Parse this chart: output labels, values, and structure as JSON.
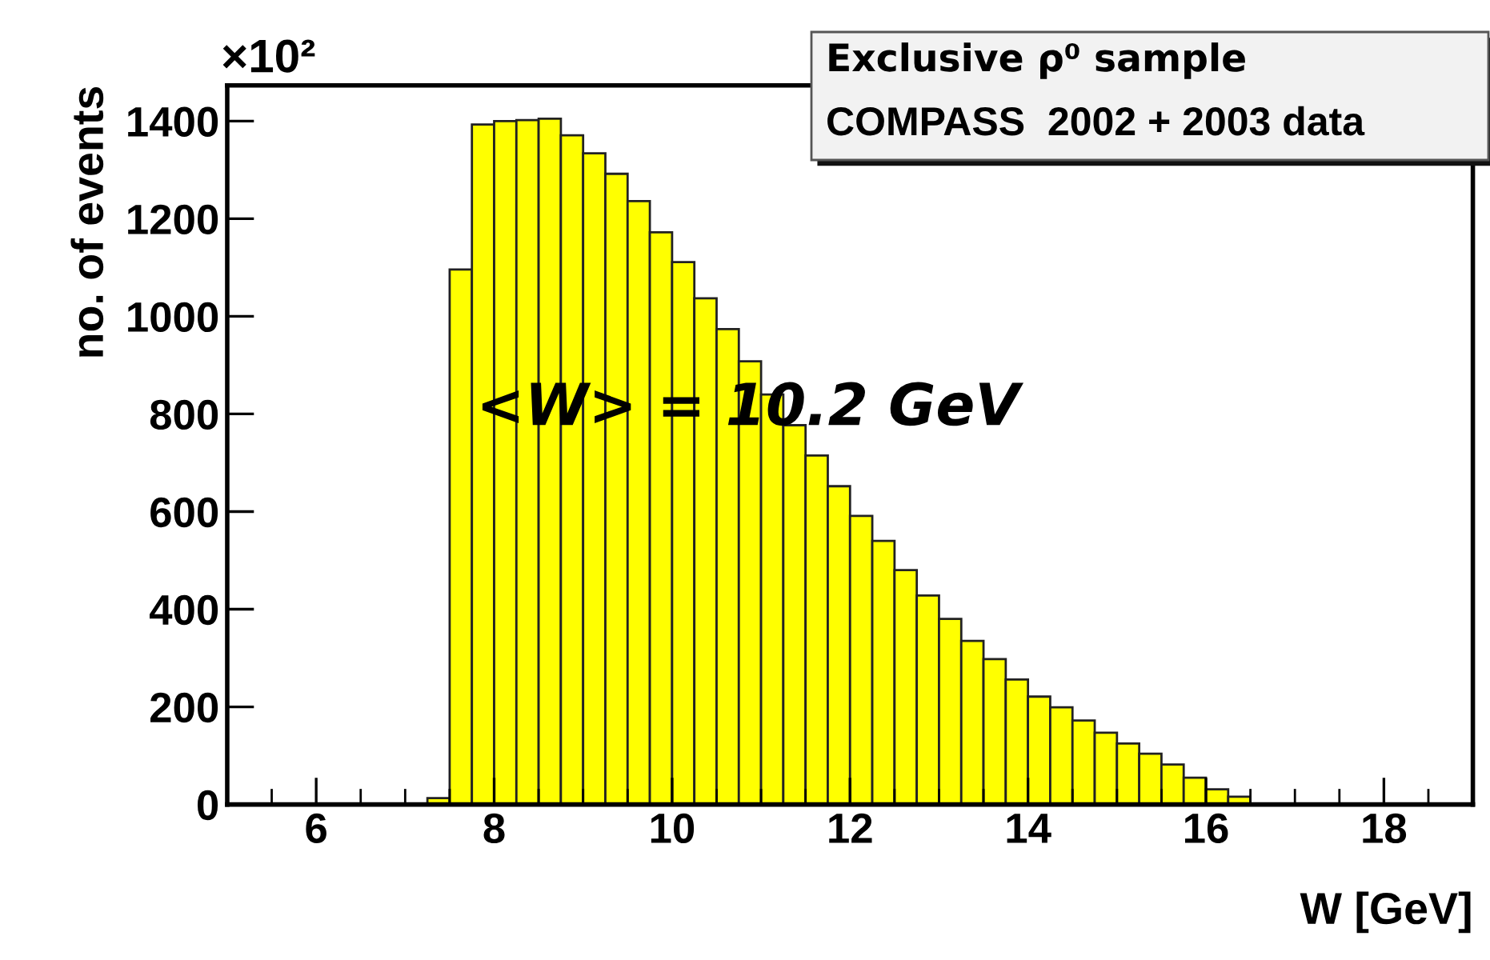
{
  "chart_data": {
    "type": "histogram",
    "title": "Exclusive ρ⁰ sample",
    "subtitle": "COMPASS  2002 + 2003 data",
    "xlabel": "W [GeV]",
    "ylabel": "no. of events",
    "annotations": [
      "×10²",
      "<W> = 10.2 GeV"
    ],
    "color": "#ffff00",
    "bins": [
      7.25,
      7.5,
      7.75,
      8.0,
      8.25,
      8.5,
      8.75,
      9.0,
      9.25,
      9.5,
      9.75,
      10.0,
      10.25,
      10.5,
      10.75,
      11.0,
      11.25,
      11.5,
      11.75,
      12.0,
      12.25,
      12.5,
      12.75,
      13.0,
      13.25,
      13.5,
      13.75,
      14.0,
      14.25,
      14.5,
      14.75,
      15.0,
      15.25,
      15.5,
      15.75,
      16.0,
      16.25,
      16.5
    ],
    "values": [
      13,
      1096,
      1393,
      1400,
      1402,
      1405,
      1371,
      1334,
      1292,
      1236,
      1172,
      1111,
      1037,
      974,
      908,
      840,
      777,
      715,
      652,
      591,
      540,
      480,
      428,
      380,
      335,
      298,
      256,
      221,
      199,
      172,
      147,
      125,
      104,
      82,
      55,
      31,
      16
    ],
    "xlim": [
      5,
      19
    ],
    "ylim": [
      0,
      1473
    ],
    "xticks": [
      6,
      8,
      10,
      12,
      14,
      16,
      18
    ],
    "yticks": [
      0,
      200,
      400,
      600,
      800,
      1000,
      1200,
      1400
    ],
    "grid": false
  }
}
